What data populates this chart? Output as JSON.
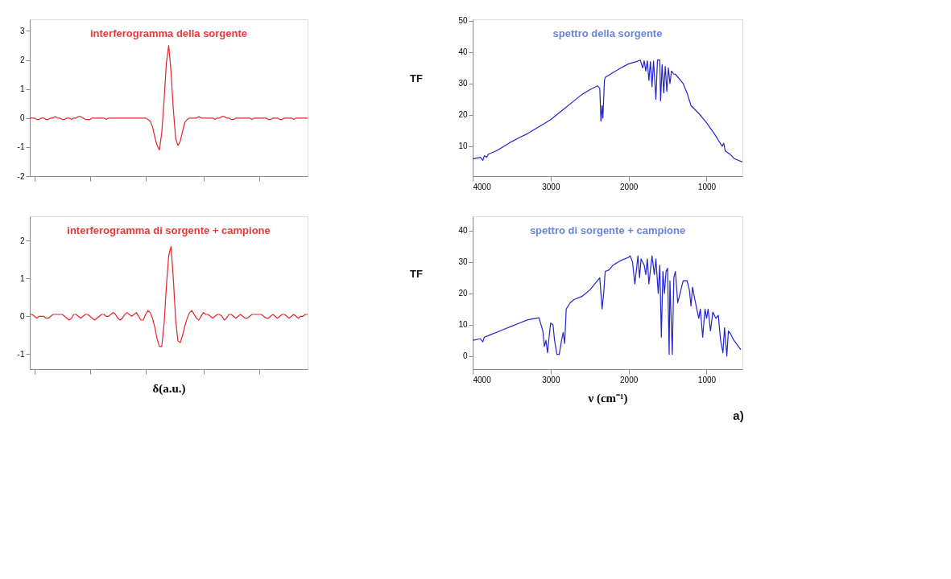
{
  "chart_data": [
    {
      "type": "line",
      "title": "interferogramma della sorgente",
      "tick_labels": "y",
      "ylim": [
        -2,
        3.4
      ],
      "yticks": [
        -2,
        -1,
        0,
        1,
        2,
        3
      ],
      "categories": [
        null,
        null,
        null,
        null,
        null,
        null,
        null,
        null,
        null,
        null,
        null,
        null,
        null,
        null,
        null,
        null,
        null,
        null,
        null,
        null,
        null,
        null,
        null,
        null,
        null,
        null,
        null,
        null,
        null,
        null,
        null,
        null,
        null,
        null,
        null,
        null,
        null,
        null,
        null,
        null,
        null,
        null,
        null,
        null,
        null,
        null,
        null,
        null,
        null,
        null,
        null,
        null,
        null,
        null,
        null,
        null,
        null,
        null,
        null,
        null,
        null,
        null,
        null,
        null,
        null,
        null,
        null,
        null,
        null,
        null,
        null,
        null,
        null,
        null,
        null,
        null,
        null,
        null,
        null,
        null,
        null,
        null,
        null,
        null,
        null,
        null,
        null,
        null,
        null,
        null,
        null,
        null,
        null,
        null,
        null,
        null,
        null,
        null,
        null,
        null,
        null,
        null,
        null,
        null,
        null,
        null,
        null,
        null,
        null,
        null,
        null,
        null,
        null,
        null,
        null,
        null,
        null,
        null,
        null,
        null,
        null
      ],
      "series": [
        {
          "color": "#e3262b",
          "values": [
            0,
            0,
            0,
            -0.05,
            -0.05,
            0,
            0,
            -0.05,
            -0.05,
            0,
            0,
            0.05,
            0,
            0,
            -0.05,
            -0.05,
            0,
            0,
            -0.05,
            0,
            0,
            0.05,
            0.05,
            0,
            -0.05,
            -0.05,
            -0.05,
            0,
            0,
            0,
            0,
            0,
            0,
            -0.05,
            0,
            0,
            0,
            0,
            0,
            0,
            0,
            0,
            0,
            0,
            0,
            0,
            0,
            0,
            0,
            0,
            0,
            -0.05,
            -0.1,
            -0.3,
            -0.65,
            -0.95,
            -1.1,
            -0.5,
            0.6,
            1.9,
            2.5,
            1.6,
            0.3,
            -0.7,
            -0.95,
            -0.8,
            -0.45,
            -0.15,
            -0.05,
            0,
            0,
            0,
            0,
            0.05,
            0,
            0,
            0,
            0,
            0,
            0,
            -0.05,
            0,
            0,
            0.05,
            0.05,
            0,
            0,
            -0.05,
            -0.05,
            0,
            0,
            0,
            0,
            0,
            0,
            0,
            -0.05,
            0,
            0,
            0,
            0,
            0,
            0,
            -0.05,
            -0.05,
            0,
            0,
            0,
            -0.05,
            -0.05,
            0,
            0,
            0,
            0,
            -0.05,
            0,
            0,
            0,
            0,
            0,
            0
          ]
        }
      ]
    },
    {
      "type": "line",
      "title": "spettro della sorgente",
      "annotations": [
        "TF"
      ],
      "xlim": [
        4000,
        540
      ],
      "xticks": [
        4000,
        3000,
        2000,
        1000
      ],
      "ylim": [
        0.5,
        50.5
      ],
      "yticks": [
        10,
        20,
        30,
        40,
        50
      ],
      "x": [
        4000,
        3900,
        3870,
        3850,
        3820,
        3800,
        3750,
        3700,
        3600,
        3500,
        3400,
        3300,
        3200,
        3100,
        3000,
        2900,
        2800,
        2700,
        2600,
        2500,
        2400,
        2370,
        2355,
        2340,
        2330,
        2310,
        2300,
        2200,
        2100,
        2000,
        1900,
        1850,
        1820,
        1800,
        1780,
        1760,
        1740,
        1720,
        1700,
        1680,
        1650,
        1630,
        1600,
        1590,
        1570,
        1550,
        1530,
        1510,
        1490,
        1470,
        1450,
        1420,
        1400,
        1300,
        1250,
        1200,
        1100,
        1000,
        900,
        800,
        780,
        760,
        700,
        640,
        540
      ],
      "series": [
        {
          "color": "#2323cf",
          "values": [
            6,
            6.5,
            5.5,
            7,
            6.5,
            7.5,
            8,
            8.5,
            10,
            11.5,
            12.8,
            14,
            15.5,
            17,
            18.5,
            20.5,
            22.5,
            24.5,
            26.5,
            28,
            29.3,
            28.5,
            18,
            23,
            19,
            31,
            32,
            33.5,
            35,
            36.3,
            37,
            37.5,
            35,
            37.3,
            34,
            37.3,
            31,
            37,
            29,
            37.2,
            25,
            37.5,
            37.5,
            24.5,
            36,
            27,
            35.5,
            27.5,
            35,
            30,
            34,
            33,
            33,
            30,
            27,
            23,
            20.5,
            17.5,
            14,
            10,
            11,
            8.5,
            7.5,
            6,
            5
          ]
        }
      ]
    },
    {
      "type": "line",
      "title": "interferogramma di sorgente + campione",
      "xlabel": "δ(a.u.)",
      "tick_labels": "y",
      "ylim": [
        -1.4,
        2.65
      ],
      "yticks": [
        -1,
        0,
        1,
        2
      ],
      "categories": [
        null,
        null,
        null,
        null,
        null,
        null,
        null,
        null,
        null,
        null,
        null,
        null,
        null,
        null,
        null,
        null,
        null,
        null,
        null,
        null,
        null,
        null,
        null,
        null,
        null,
        null,
        null,
        null,
        null,
        null,
        null,
        null,
        null,
        null,
        null,
        null,
        null,
        null,
        null,
        null,
        null,
        null,
        null,
        null,
        null,
        null,
        null,
        null,
        null,
        null,
        null,
        null,
        null,
        null,
        null,
        null,
        null,
        null,
        null,
        null,
        null,
        null,
        null,
        null,
        null,
        null,
        null,
        null,
        null,
        null,
        null,
        null,
        null,
        null,
        null,
        null,
        null,
        null,
        null,
        null,
        null,
        null,
        null,
        null,
        null,
        null,
        null,
        null,
        null,
        null,
        null,
        null,
        null,
        null,
        null,
        null,
        null,
        null,
        null,
        null,
        null,
        null,
        null,
        null,
        null,
        null,
        null,
        null,
        null,
        null,
        null,
        null,
        null,
        null,
        null,
        null,
        null,
        null,
        null,
        null,
        null
      ],
      "series": [
        {
          "color": "#e3262b",
          "values": [
            0.05,
            0.05,
            0,
            -0.05,
            0,
            0,
            0,
            -0.05,
            -0.05,
            0,
            0.05,
            0.05,
            0.05,
            0.05,
            0.05,
            0,
            -0.05,
            -0.1,
            -0.05,
            0.05,
            0.05,
            0,
            -0.05,
            0,
            0.05,
            0.05,
            0,
            -0.05,
            -0.1,
            -0.05,
            0,
            0.05,
            0.05,
            0,
            0,
            0.05,
            0.1,
            0.05,
            -0.05,
            -0.1,
            -0.05,
            0.05,
            0.1,
            0.05,
            0,
            0.05,
            0.1,
            0,
            -0.1,
            -0.1,
            0.05,
            0.15,
            0.1,
            -0.05,
            -0.3,
            -0.6,
            -0.8,
            -0.8,
            -0.2,
            0.8,
            1.6,
            1.85,
            1.0,
            -0.1,
            -0.65,
            -0.7,
            -0.5,
            -0.25,
            -0.05,
            0.1,
            0.15,
            0.05,
            -0.05,
            -0.1,
            0,
            0.1,
            0.05,
            0.05,
            0,
            -0.05,
            0,
            0.05,
            0.05,
            0,
            -0.1,
            -0.05,
            0.05,
            0.05,
            0,
            -0.05,
            0,
            0.05,
            0,
            -0.05,
            -0.05,
            0,
            0.05,
            0.05,
            0.05,
            0.05,
            0.05,
            0,
            -0.05,
            -0.05,
            0,
            0.05,
            0,
            -0.05,
            0,
            0.05,
            0.05,
            0,
            -0.05,
            0,
            0.05,
            0,
            -0.05,
            0,
            0,
            0.05,
            0.05
          ]
        }
      ]
    },
    {
      "type": "line",
      "title": "spettro di sorgente + campione",
      "xlabel": "ν (cm⁻¹)",
      "annotations": [
        "TF",
        "a)"
      ],
      "xlim": [
        4000,
        540
      ],
      "xticks": [
        4000,
        3000,
        2000,
        1000
      ],
      "ylim": [
        -4.2,
        44.6
      ],
      "yticks": [
        0,
        10,
        20,
        30,
        40
      ],
      "x": [
        4000,
        3900,
        3870,
        3850,
        3800,
        3750,
        3700,
        3600,
        3500,
        3400,
        3300,
        3150,
        3100,
        3080,
        3060,
        3040,
        3020,
        3000,
        2970,
        2950,
        2920,
        2890,
        2860,
        2840,
        2820,
        2800,
        2750,
        2700,
        2600,
        2500,
        2400,
        2370,
        2340,
        2320,
        2300,
        2250,
        2200,
        2100,
        2000,
        1980,
        1950,
        1920,
        1880,
        1860,
        1840,
        1800,
        1780,
        1760,
        1740,
        1700,
        1670,
        1650,
        1620,
        1600,
        1580,
        1560,
        1540,
        1520,
        1500,
        1480,
        1470,
        1440,
        1420,
        1400,
        1370,
        1350,
        1300,
        1250,
        1220,
        1200,
        1180,
        1150,
        1100,
        1080,
        1050,
        1020,
        1000,
        980,
        950,
        920,
        880,
        850,
        820,
        790,
        770,
        740,
        720,
        690,
        650,
        560
      ],
      "series": [
        {
          "color": "#2323cf",
          "values": [
            5,
            5.5,
            4.5,
            6,
            6.5,
            7,
            7.5,
            8.5,
            9.5,
            10.5,
            11.5,
            12.2,
            8,
            3,
            5,
            1,
            6,
            10.5,
            10,
            5,
            0.5,
            0.5,
            5,
            7.5,
            4,
            15,
            17,
            18,
            19,
            21,
            24,
            25,
            15,
            20,
            27,
            27.5,
            29,
            30.5,
            31.5,
            32,
            30,
            23,
            32,
            25,
            31,
            29,
            26,
            31,
            23,
            32,
            26,
            31,
            20,
            29,
            6,
            27,
            20,
            27,
            28,
            0.5,
            24,
            0.5,
            25,
            27,
            17,
            19,
            24,
            24,
            21,
            16,
            22,
            18,
            12,
            15,
            6,
            15,
            12,
            15,
            8,
            14,
            12,
            13,
            5,
            1,
            9,
            0,
            8,
            7,
            5,
            2
          ]
        }
      ]
    }
  ]
}
